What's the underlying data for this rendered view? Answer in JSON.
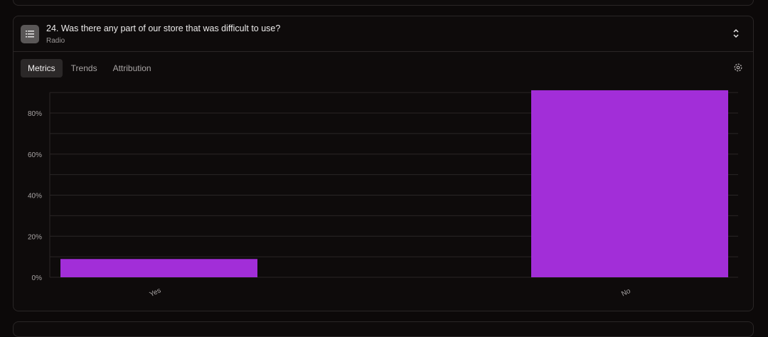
{
  "question": {
    "title": "24. Was there any part of our store that was difficult to use?",
    "type": "Radio",
    "icon": "list-icon"
  },
  "tabs": [
    {
      "label": "Metrics",
      "active": true
    },
    {
      "label": "Trends",
      "active": false
    },
    {
      "label": "Attribution",
      "active": false
    }
  ],
  "colors": {
    "bar": "#a22ed8",
    "background": "#0e0b0b",
    "grid": "#2a2626"
  },
  "chart_data": {
    "type": "bar",
    "categories": [
      "Yes",
      "No"
    ],
    "values": [
      8.9,
      91.1
    ],
    "ylim": [
      0,
      90
    ],
    "yticks": [
      0,
      20,
      40,
      60,
      80
    ],
    "ytick_labels": [
      "0%",
      "20%",
      "40%",
      "60%",
      "80%"
    ],
    "grid": true,
    "xlabel": "",
    "ylabel": "",
    "title": ""
  }
}
